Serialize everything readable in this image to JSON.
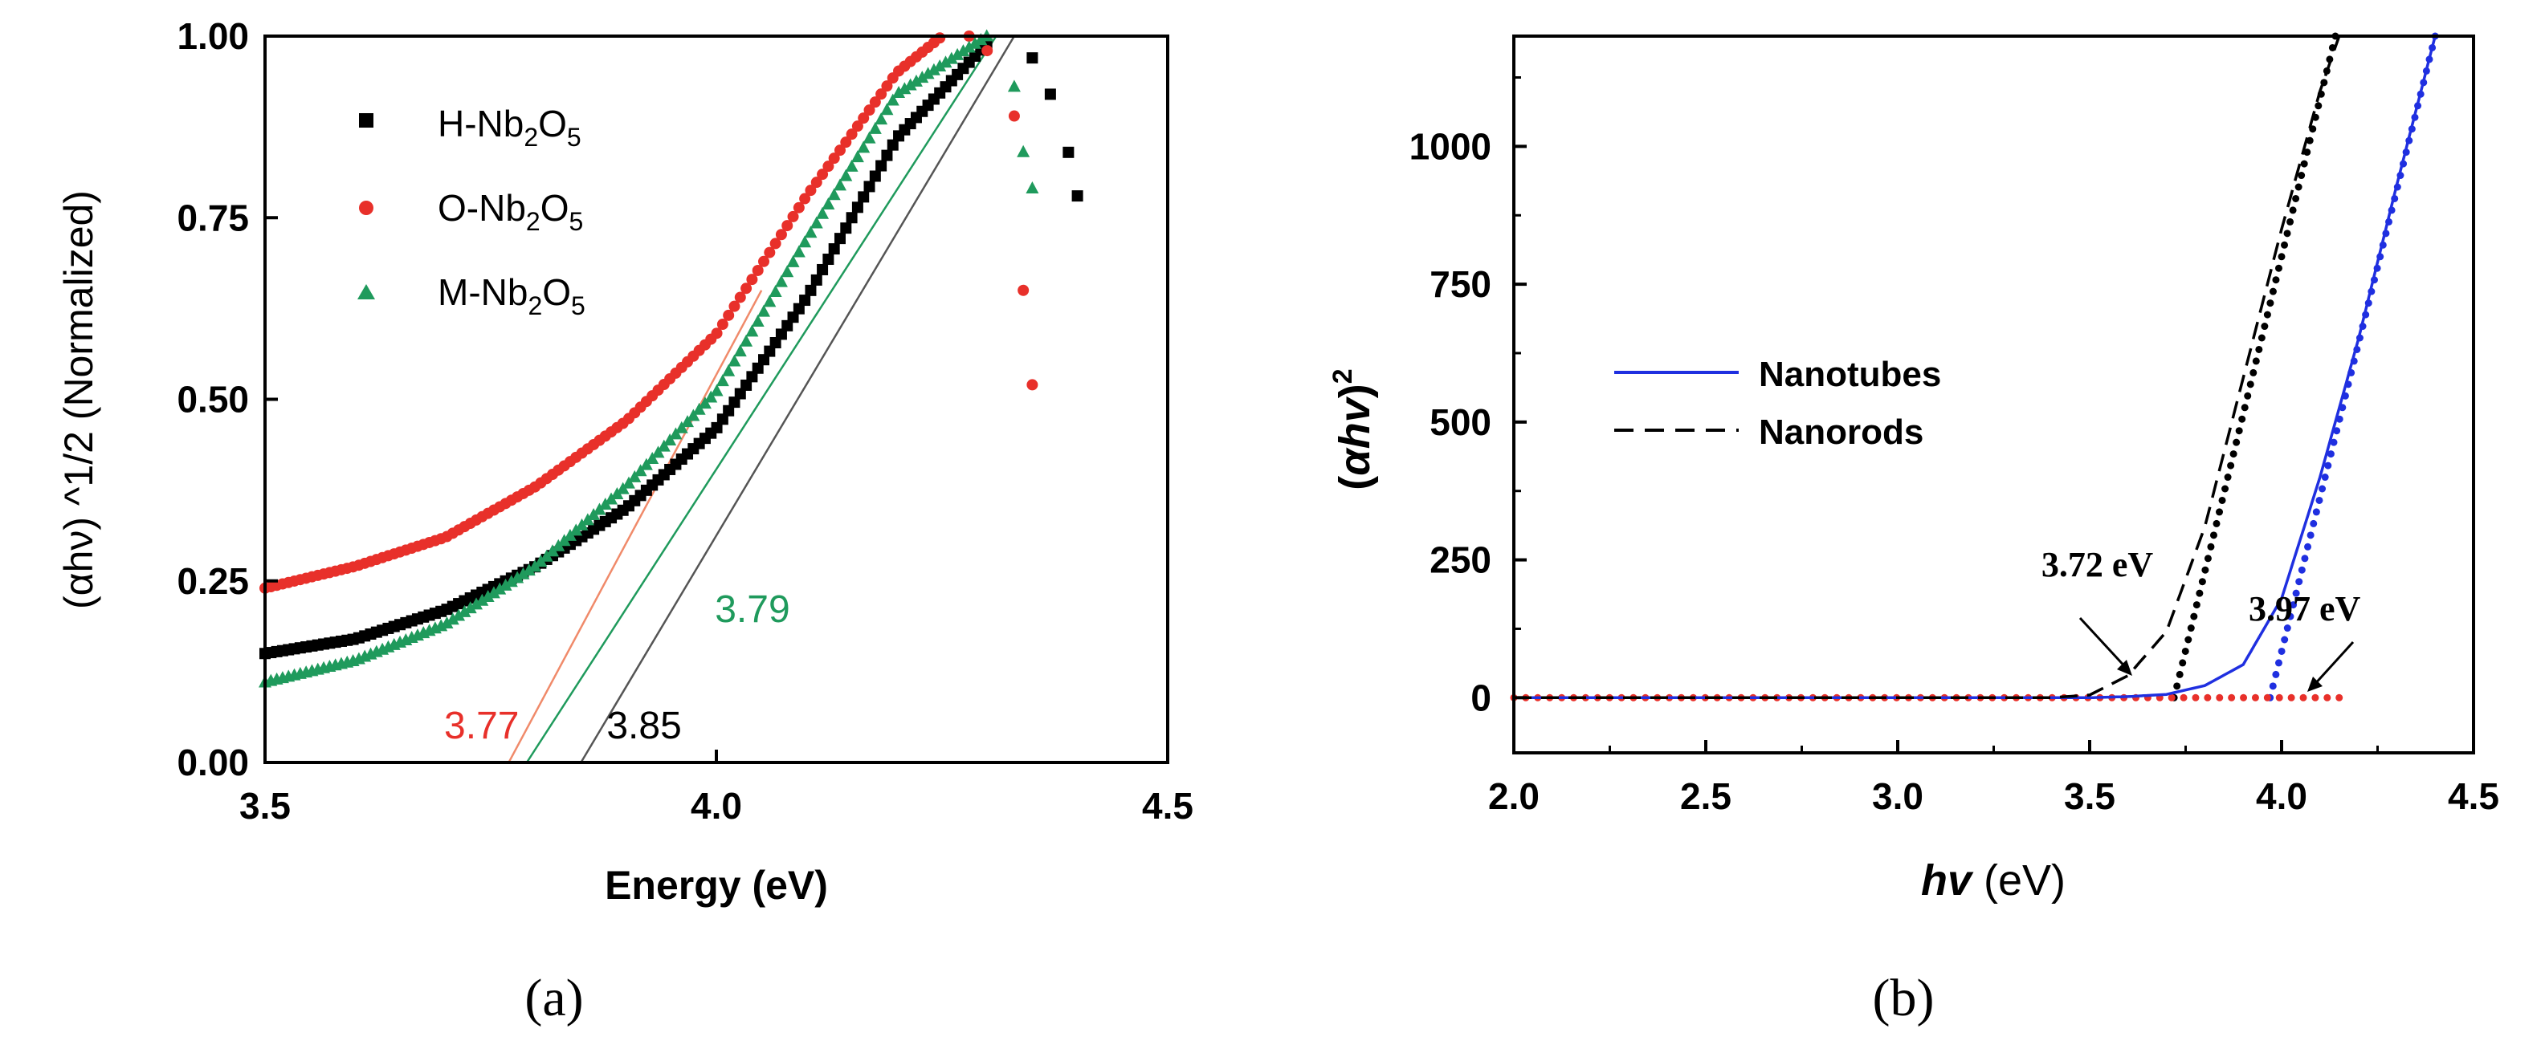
{
  "chart_data": [
    {
      "panel": "(a)",
      "type": "scatter",
      "xlabel": "Energy (eV)",
      "ylabel": "(αhν) ^1/2 (Normalized)",
      "xlim": [
        3.5,
        4.5
      ],
      "ylim": [
        0.0,
        1.0
      ],
      "xticks": [
        "3.5",
        "4.0",
        "4.5"
      ],
      "yticks": [
        "0.00",
        "0.25",
        "0.50",
        "0.75",
        "1.00"
      ],
      "legend_position": "top-left",
      "series": [
        {
          "name": "H-Nb2O5",
          "marker": "square",
          "color": "#000000",
          "x": [
            3.5,
            3.6,
            3.7,
            3.8,
            3.9,
            4.0,
            4.1,
            4.2,
            4.3,
            4.35,
            4.37,
            4.39,
            4.4
          ],
          "y": [
            0.15,
            0.17,
            0.21,
            0.27,
            0.35,
            0.46,
            0.64,
            0.86,
            0.99,
            0.97,
            0.92,
            0.84,
            0.78
          ]
        },
        {
          "name": "O-Nb2O5",
          "marker": "circle",
          "color": "#e8302a",
          "x": [
            3.5,
            3.6,
            3.7,
            3.8,
            3.9,
            4.0,
            4.1,
            4.2,
            4.25,
            4.28,
            4.3,
            4.33,
            4.34,
            4.35
          ],
          "y": [
            0.24,
            0.27,
            0.31,
            0.38,
            0.47,
            0.59,
            0.78,
            0.95,
            1.0,
            1.0,
            0.98,
            0.89,
            0.65,
            0.52
          ]
        },
        {
          "name": "M-Nb2O5",
          "marker": "triangle",
          "color": "#1f9a5c",
          "x": [
            3.5,
            3.6,
            3.7,
            3.8,
            3.9,
            4.0,
            4.1,
            4.2,
            4.3,
            4.33,
            4.34,
            4.35
          ],
          "y": [
            0.11,
            0.14,
            0.19,
            0.27,
            0.38,
            0.51,
            0.72,
            0.92,
            1.0,
            0.93,
            0.84,
            0.79
          ]
        }
      ],
      "fit_lines": [
        {
          "name": "O-Nb2O5 fit",
          "color": "#f08a6a",
          "x": [
            3.77,
            4.05
          ],
          "y": [
            0.0,
            0.65
          ]
        },
        {
          "name": "M-Nb2O5 fit",
          "color": "#1f9a5c",
          "x": [
            3.79,
            4.31
          ],
          "y": [
            0.0,
            1.0
          ]
        },
        {
          "name": "H-Nb2O5 fit",
          "color": "#555555",
          "x": [
            3.85,
            4.33
          ],
          "y": [
            0.0,
            1.0
          ]
        }
      ],
      "annotations": [
        {
          "text": "3.77",
          "color": "#e8302a",
          "x": 3.74,
          "y": 0.05
        },
        {
          "text": "3.85",
          "color": "#000000",
          "x": 3.92,
          "y": 0.05
        },
        {
          "text": "3.79",
          "color": "#1f9a5c",
          "x": 4.04,
          "y": 0.21
        }
      ]
    },
    {
      "panel": "(b)",
      "type": "line",
      "xlabel_italic": "hv",
      "xlabel_rest": " (eV)",
      "ylabel": "(αhv)²",
      "xlim": [
        2.0,
        4.5
      ],
      "ylim": [
        -100,
        1200
      ],
      "xticks": [
        "2.0",
        "2.5",
        "3.0",
        "3.5",
        "4.0",
        "4.5"
      ],
      "yticks": [
        "0",
        "250",
        "500",
        "750",
        "1000"
      ],
      "legend_position": "middle-left",
      "series": [
        {
          "name": "Nanotubes",
          "style": "solid",
          "color": "#1f2fe0",
          "x": [
            2.0,
            3.0,
            3.5,
            3.6,
            3.7,
            3.8,
            3.9,
            4.0,
            4.1,
            4.2,
            4.3,
            4.4
          ],
          "y": [
            0,
            0,
            0,
            2,
            6,
            22,
            60,
            180,
            400,
            650,
            930,
            1200
          ]
        },
        {
          "name": "Nanorods",
          "style": "dashed",
          "color": "#000000",
          "x": [
            2.0,
            3.0,
            3.4,
            3.5,
            3.6,
            3.7,
            3.8,
            3.9,
            4.0,
            4.1,
            4.15
          ],
          "y": [
            0,
            0,
            0,
            5,
            40,
            120,
            310,
            580,
            850,
            1100,
            1200
          ]
        }
      ],
      "fit_lines": [
        {
          "name": "Nanorods fit",
          "color": "#000000",
          "x": [
            3.72,
            4.14
          ],
          "y": [
            0,
            1200
          ]
        },
        {
          "name": "Nanotubes fit",
          "color": "#1f2fe0",
          "x": [
            3.97,
            4.4
          ],
          "y": [
            0,
            1200
          ]
        },
        {
          "name": "Baseline",
          "color": "#e8302a",
          "x": [
            2.0,
            4.15
          ],
          "y": [
            0,
            0
          ]
        }
      ],
      "annotations": [
        {
          "text": "3.72 eV",
          "x": 3.52,
          "y": 220
        },
        {
          "text": "3.97 eV",
          "x": 4.06,
          "y": 140
        }
      ]
    }
  ]
}
